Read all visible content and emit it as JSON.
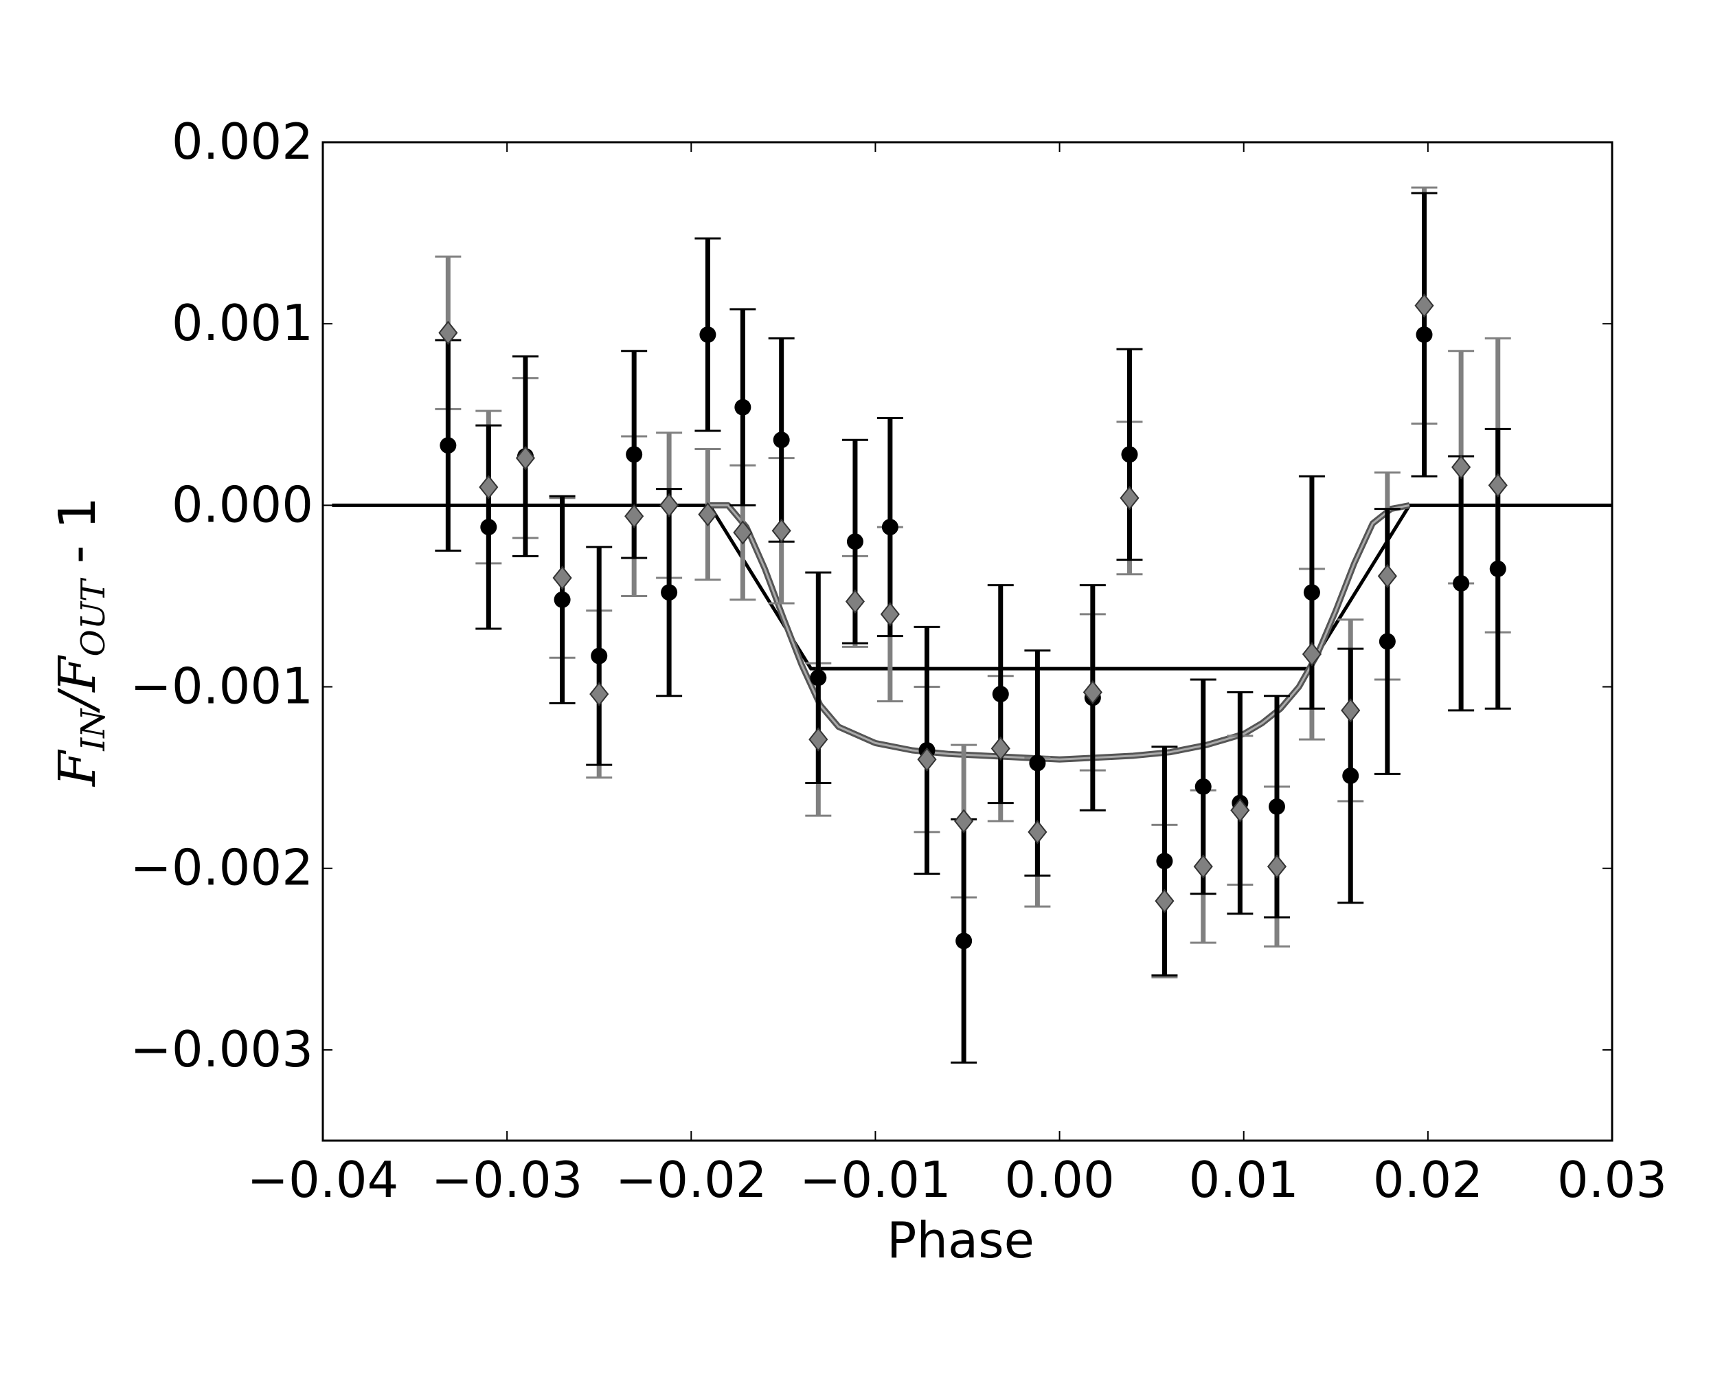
{
  "chart_data": {
    "type": "scatter",
    "title": "",
    "xlabel": "Phase",
    "ylabel": {
      "f_in": "F",
      "in_sub": "IN",
      "slash": "/",
      "f_out": "F",
      "out_sub": "OUT",
      "suffix": " - 1"
    },
    "xlim": [
      -0.04,
      0.03
    ],
    "ylim": [
      -0.0035,
      0.002
    ],
    "xticks": [
      -0.04,
      -0.03,
      -0.02,
      -0.01,
      0.0,
      0.01,
      0.02,
      0.03
    ],
    "xtick_labels": [
      "−0.04",
      "−0.03",
      "−0.02",
      "−0.01",
      "0.00",
      "0.01",
      "0.02",
      "0.03"
    ],
    "yticks": [
      -0.003,
      -0.002,
      -0.001,
      0.0,
      0.001,
      0.002
    ],
    "ytick_labels": [
      "−0.003",
      "−0.002",
      "−0.001",
      "0.000",
      "0.001",
      "0.002"
    ],
    "grid": false,
    "colors": {
      "black": "#000000",
      "gray": "#808080",
      "model_gray": "#555555"
    },
    "series": [
      {
        "marker": "circle",
        "color": "#000000",
        "points": [
          {
            "x": -0.0332,
            "y": 0.00033,
            "err": 0.00058
          },
          {
            "x": -0.031,
            "y": -0.00012,
            "err": 0.00056
          },
          {
            "x": -0.029,
            "y": 0.00027,
            "err": 0.00055
          },
          {
            "x": -0.027,
            "y": -0.00052,
            "err": 0.00057
          },
          {
            "x": -0.025,
            "y": -0.00083,
            "err": 0.0006
          },
          {
            "x": -0.0231,
            "y": 0.00028,
            "err": 0.00057
          },
          {
            "x": -0.0212,
            "y": -0.00048,
            "err": 0.00057
          },
          {
            "x": -0.0191,
            "y": 0.00094,
            "err": 0.00053
          },
          {
            "x": -0.0172,
            "y": 0.00054,
            "err": 0.00054
          },
          {
            "x": -0.0151,
            "y": 0.00036,
            "err": 0.00056
          },
          {
            "x": -0.0131,
            "y": -0.00095,
            "err": 0.00058
          },
          {
            "x": -0.0111,
            "y": -0.0002,
            "err": 0.00056
          },
          {
            "x": -0.0092,
            "y": -0.00012,
            "err": 0.0006
          },
          {
            "x": -0.0072,
            "y": -0.00135,
            "err": 0.00068
          },
          {
            "x": -0.0052,
            "y": -0.0024,
            "err": 0.00067
          },
          {
            "x": -0.0032,
            "y": -0.00104,
            "err": 0.0006
          },
          {
            "x": -0.0012,
            "y": -0.00142,
            "err": 0.00062
          },
          {
            "x": 0.0018,
            "y": -0.00106,
            "err": 0.00062
          },
          {
            "x": 0.0038,
            "y": 0.00028,
            "err": 0.00058
          },
          {
            "x": 0.0057,
            "y": -0.00196,
            "err": 0.00063
          },
          {
            "x": 0.0078,
            "y": -0.00155,
            "err": 0.00059
          },
          {
            "x": 0.0098,
            "y": -0.00164,
            "err": 0.00061
          },
          {
            "x": 0.0118,
            "y": -0.00166,
            "err": 0.00061
          },
          {
            "x": 0.0137,
            "y": -0.00048,
            "err": 0.00064
          },
          {
            "x": 0.0158,
            "y": -0.00149,
            "err": 0.0007
          },
          {
            "x": 0.0178,
            "y": -0.00075,
            "err": 0.00073
          },
          {
            "x": 0.0198,
            "y": 0.00094,
            "err": 0.00078
          },
          {
            "x": 0.0218,
            "y": -0.00043,
            "err": 0.0007
          },
          {
            "x": 0.0238,
            "y": -0.00035,
            "err": 0.00077
          }
        ]
      },
      {
        "marker": "diamond",
        "color": "#808080",
        "points": [
          {
            "x": -0.0332,
            "y": 0.00095,
            "err": 0.00042
          },
          {
            "x": -0.031,
            "y": 0.0001,
            "err": 0.00042
          },
          {
            "x": -0.029,
            "y": 0.00026,
            "err": 0.00044
          },
          {
            "x": -0.027,
            "y": -0.0004,
            "err": 0.00044
          },
          {
            "x": -0.025,
            "y": -0.00104,
            "err": 0.00046
          },
          {
            "x": -0.0231,
            "y": -6e-05,
            "err": 0.00044
          },
          {
            "x": -0.0212,
            "y": 0.0,
            "err": 0.0004
          },
          {
            "x": -0.0191,
            "y": -5e-05,
            "err": 0.00036
          },
          {
            "x": -0.0172,
            "y": -0.00015,
            "err": 0.00037
          },
          {
            "x": -0.0151,
            "y": -0.00014,
            "err": 0.0004
          },
          {
            "x": -0.0131,
            "y": -0.00129,
            "err": 0.00042
          },
          {
            "x": -0.0111,
            "y": -0.00053,
            "err": 0.00025
          },
          {
            "x": -0.0092,
            "y": -0.0006,
            "err": 0.00048
          },
          {
            "x": -0.0072,
            "y": -0.0014,
            "err": 0.0004
          },
          {
            "x": -0.0052,
            "y": -0.00174,
            "err": 0.00042
          },
          {
            "x": -0.0032,
            "y": -0.00134,
            "err": 0.0004
          },
          {
            "x": -0.0012,
            "y": -0.0018,
            "err": 0.00041
          },
          {
            "x": 0.0018,
            "y": -0.00103,
            "err": 0.00043
          },
          {
            "x": 0.0038,
            "y": 4e-05,
            "err": 0.00042
          },
          {
            "x": 0.0057,
            "y": -0.00218,
            "err": 0.00042
          },
          {
            "x": 0.0078,
            "y": -0.00199,
            "err": 0.00042
          },
          {
            "x": 0.0098,
            "y": -0.00168,
            "err": 0.00041
          },
          {
            "x": 0.0118,
            "y": -0.00199,
            "err": 0.00044
          },
          {
            "x": 0.0137,
            "y": -0.00082,
            "err": 0.00047
          },
          {
            "x": 0.0158,
            "y": -0.00113,
            "err": 0.0005
          },
          {
            "x": 0.0178,
            "y": -0.00039,
            "err": 0.00057
          },
          {
            "x": 0.0198,
            "y": 0.0011,
            "err": 0.00065
          },
          {
            "x": 0.0218,
            "y": 0.00021,
            "err": 0.00064
          },
          {
            "x": 0.0238,
            "y": 0.00011,
            "err": 0.00081
          }
        ]
      }
    ],
    "models": [
      {
        "style": "black-trapezoid",
        "color": "#000000",
        "x": [
          -0.0395,
          -0.019,
          -0.0135,
          0.0135,
          0.019,
          0.03
        ],
        "y": [
          0.0,
          0.0,
          -0.0009,
          -0.0009,
          0.0,
          0.0
        ]
      },
      {
        "style": "gray-limb-darkened",
        "color": "#555555",
        "x": [
          -0.019,
          -0.018,
          -0.017,
          -0.016,
          -0.015,
          -0.014,
          -0.013,
          -0.012,
          -0.01,
          -0.008,
          -0.006,
          -0.004,
          -0.002,
          0.0,
          0.002,
          0.004,
          0.006,
          0.008,
          0.01,
          0.011,
          0.012,
          0.013,
          0.014,
          0.015,
          0.016,
          0.017,
          0.018,
          0.019
        ],
        "y": [
          0.0,
          0.0,
          -0.00012,
          -0.00035,
          -0.00062,
          -0.00088,
          -0.0011,
          -0.00122,
          -0.00131,
          -0.00135,
          -0.00137,
          -0.00138,
          -0.00139,
          -0.0014,
          -0.00139,
          -0.00138,
          -0.00136,
          -0.00132,
          -0.00126,
          -0.0012,
          -0.00112,
          -0.001,
          -0.00082,
          -0.00058,
          -0.00032,
          -0.0001,
          -2e-05,
          0.0
        ]
      }
    ]
  }
}
